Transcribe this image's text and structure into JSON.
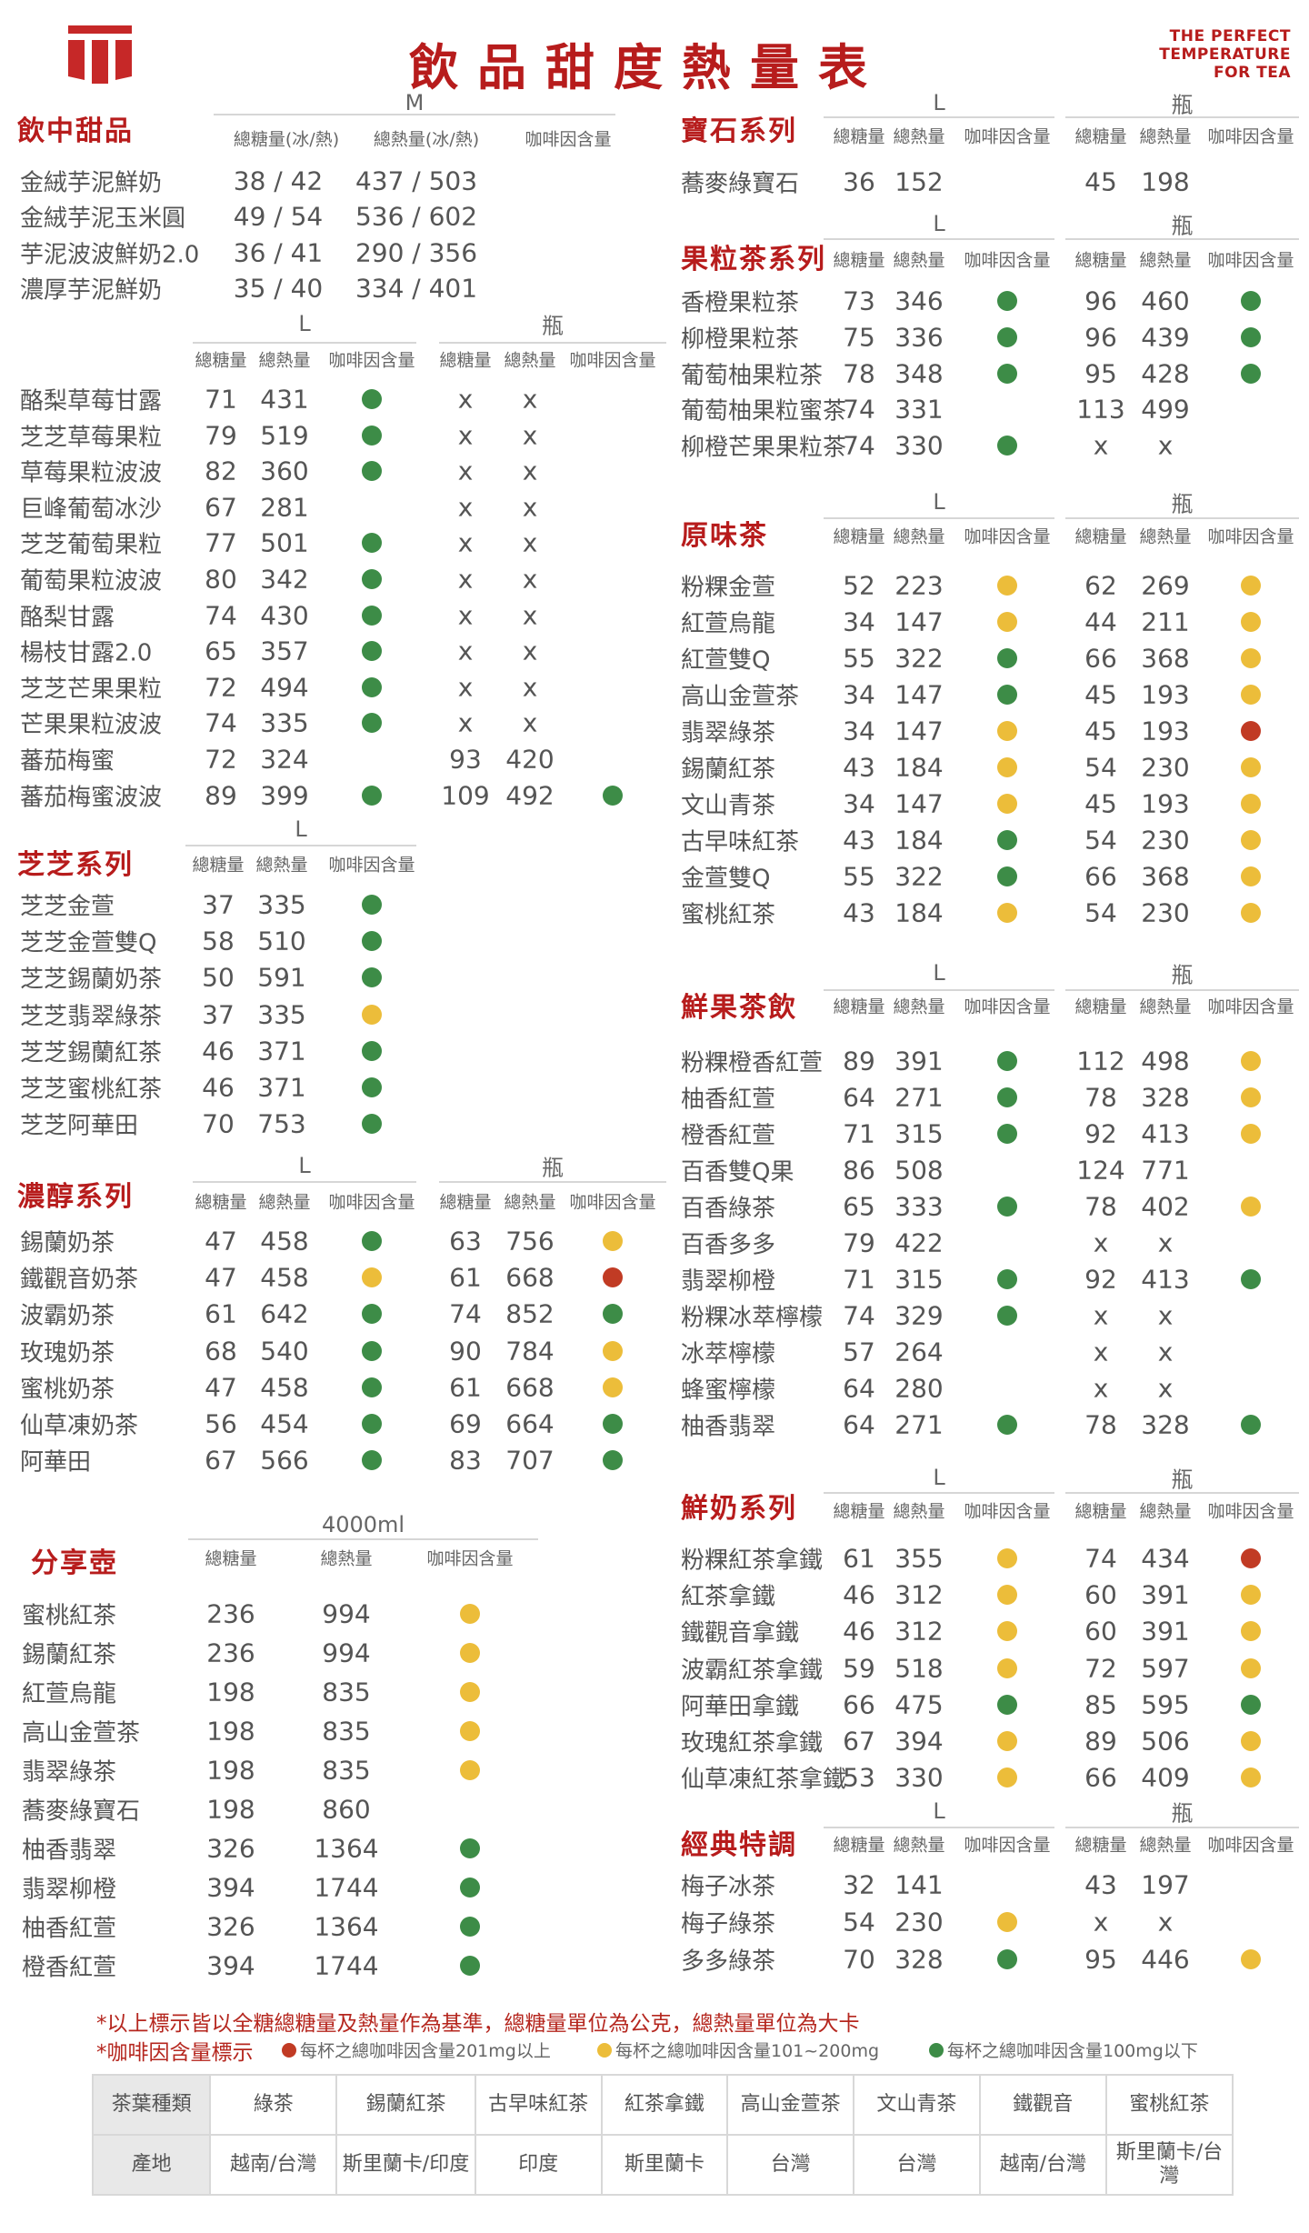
{
  "header": {
    "title": "飲品甜度熱量表",
    "brand_lines": [
      "THE PERFECT",
      "TEMPERATURE",
      "FOR TEA"
    ],
    "logo": "red-gate-logo"
  },
  "colors": {
    "brand": "#b71c1c",
    "green": "#3d8c47",
    "yellow": "#ecbd3a",
    "red": "#c13b24",
    "text": "#555555"
  },
  "sections": [
    {
      "title": "飲中甜品",
      "size_l": "M",
      "headers": [
        "總糖量(冰/熱)",
        "總熱量(冰/熱)",
        "咖啡因含量"
      ],
      "rows": [
        {
          "name": "金絨芋泥鮮奶",
          "l": [
            "38 / 42",
            "437 / 503",
            ""
          ]
        },
        {
          "name": "金絨芋泥玉米圓",
          "l": [
            "49 / 54",
            "536 / 602",
            ""
          ]
        },
        {
          "name": "芋泥波波鮮奶2.0",
          "l": [
            "36 / 41",
            "290 / 356",
            ""
          ]
        },
        {
          "name": "濃厚芋泥鮮奶",
          "l": [
            "35 / 40",
            "334 / 401",
            ""
          ]
        }
      ]
    },
    {
      "title": "",
      "size_l": "L",
      "size_b": "瓶",
      "headers": [
        "總糖量",
        "總熱量",
        "咖啡因含量"
      ],
      "rows": [
        {
          "name": "酪梨草莓甘露",
          "l": [
            "71",
            "431",
            "green"
          ],
          "b": [
            "x",
            "x",
            ""
          ]
        },
        {
          "name": "芝芝草莓果粒",
          "l": [
            "79",
            "519",
            "green"
          ],
          "b": [
            "x",
            "x",
            ""
          ]
        },
        {
          "name": "草莓果粒波波",
          "l": [
            "82",
            "360",
            "green"
          ],
          "b": [
            "x",
            "x",
            ""
          ]
        },
        {
          "name": "巨峰葡萄冰沙",
          "l": [
            "67",
            "281",
            ""
          ],
          "b": [
            "x",
            "x",
            ""
          ]
        },
        {
          "name": "芝芝葡萄果粒",
          "l": [
            "77",
            "501",
            "green"
          ],
          "b": [
            "x",
            "x",
            ""
          ]
        },
        {
          "name": "葡萄果粒波波",
          "l": [
            "80",
            "342",
            "green"
          ],
          "b": [
            "x",
            "x",
            ""
          ]
        },
        {
          "name": "酪梨甘露",
          "l": [
            "74",
            "430",
            "green"
          ],
          "b": [
            "x",
            "x",
            ""
          ]
        },
        {
          "name": "楊枝甘露2.0",
          "l": [
            "65",
            "357",
            "green"
          ],
          "b": [
            "x",
            "x",
            ""
          ]
        },
        {
          "name": "芝芝芒果果粒",
          "l": [
            "72",
            "494",
            "green"
          ],
          "b": [
            "x",
            "x",
            ""
          ]
        },
        {
          "name": "芒果果粒波波",
          "l": [
            "74",
            "335",
            "green"
          ],
          "b": [
            "x",
            "x",
            ""
          ]
        },
        {
          "name": "蕃茄梅蜜",
          "l": [
            "72",
            "324",
            ""
          ],
          "b": [
            "93",
            "420",
            ""
          ]
        },
        {
          "name": "蕃茄梅蜜波波",
          "l": [
            "89",
            "399",
            "green"
          ],
          "b": [
            "109",
            "492",
            "green"
          ]
        }
      ]
    },
    {
      "title": "芝芝系列",
      "size_l": "L",
      "headers": [
        "總糖量",
        "總熱量",
        "咖啡因含量"
      ],
      "rows": [
        {
          "name": "芝芝金萱",
          "l": [
            "37",
            "335",
            "green"
          ]
        },
        {
          "name": "芝芝金萱雙Q",
          "l": [
            "58",
            "510",
            "green"
          ]
        },
        {
          "name": "芝芝錫蘭奶茶",
          "l": [
            "50",
            "591",
            "green"
          ]
        },
        {
          "name": "芝芝翡翠綠茶",
          "l": [
            "37",
            "335",
            "yellow"
          ]
        },
        {
          "name": "芝芝錫蘭紅茶",
          "l": [
            "46",
            "371",
            "green"
          ]
        },
        {
          "name": "芝芝蜜桃紅茶",
          "l": [
            "46",
            "371",
            "green"
          ]
        },
        {
          "name": "芝芝阿華田",
          "l": [
            "70",
            "753",
            "green"
          ]
        }
      ]
    },
    {
      "title": "濃醇系列",
      "size_l": "L",
      "size_b": "瓶",
      "headers": [
        "總糖量",
        "總熱量",
        "咖啡因含量"
      ],
      "rows": [
        {
          "name": "錫蘭奶茶",
          "l": [
            "47",
            "458",
            "green"
          ],
          "b": [
            "63",
            "756",
            "yellow"
          ]
        },
        {
          "name": "鐵觀音奶茶",
          "l": [
            "47",
            "458",
            "yellow"
          ],
          "b": [
            "61",
            "668",
            "red"
          ]
        },
        {
          "name": "波霸奶茶",
          "l": [
            "61",
            "642",
            "green"
          ],
          "b": [
            "74",
            "852",
            "green"
          ]
        },
        {
          "name": "玫瑰奶茶",
          "l": [
            "68",
            "540",
            "green"
          ],
          "b": [
            "90",
            "784",
            "yellow"
          ]
        },
        {
          "name": "蜜桃奶茶",
          "l": [
            "47",
            "458",
            "green"
          ],
          "b": [
            "61",
            "668",
            "yellow"
          ]
        },
        {
          "name": "仙草凍奶茶",
          "l": [
            "56",
            "454",
            "green"
          ],
          "b": [
            "69",
            "664",
            "green"
          ]
        },
        {
          "name": "阿華田",
          "l": [
            "67",
            "566",
            "green"
          ],
          "b": [
            "83",
            "707",
            "green"
          ]
        }
      ]
    },
    {
      "title": "分享壺",
      "size_l": "4000ml",
      "headers": [
        "總糖量",
        "總熱量",
        "咖啡因含量"
      ],
      "rows": [
        {
          "name": "蜜桃紅茶",
          "l": [
            "236",
            "994",
            "yellow"
          ]
        },
        {
          "name": "錫蘭紅茶",
          "l": [
            "236",
            "994",
            "yellow"
          ]
        },
        {
          "name": "紅萱烏龍",
          "l": [
            "198",
            "835",
            "yellow"
          ]
        },
        {
          "name": "高山金萱茶",
          "l": [
            "198",
            "835",
            "yellow"
          ]
        },
        {
          "name": "翡翠綠茶",
          "l": [
            "198",
            "835",
            "yellow"
          ]
        },
        {
          "name": "蕎麥綠寶石",
          "l": [
            "198",
            "860",
            ""
          ]
        },
        {
          "name": "柚香翡翠",
          "l": [
            "326",
            "1364",
            "green"
          ]
        },
        {
          "name": "翡翠柳橙",
          "l": [
            "394",
            "1744",
            "green"
          ]
        },
        {
          "name": "柚香紅萱",
          "l": [
            "326",
            "1364",
            "green"
          ]
        },
        {
          "name": "橙香紅萱",
          "l": [
            "394",
            "1744",
            "green"
          ]
        }
      ]
    },
    {
      "title": "寶石系列",
      "size_l": "L",
      "size_b": "瓶",
      "headers": [
        "總糖量",
        "總熱量",
        "咖啡因含量"
      ],
      "rows": [
        {
          "name": "蕎麥綠寶石",
          "l": [
            "36",
            "152",
            ""
          ],
          "b": [
            "45",
            "198",
            ""
          ]
        }
      ]
    },
    {
      "title": "果粒茶系列",
      "size_l": "L",
      "size_b": "瓶",
      "headers": [
        "總糖量",
        "總熱量",
        "咖啡因含量"
      ],
      "rows": [
        {
          "name": "香橙果粒茶",
          "l": [
            "73",
            "346",
            "green"
          ],
          "b": [
            "96",
            "460",
            "green"
          ]
        },
        {
          "name": "柳橙果粒茶",
          "l": [
            "75",
            "336",
            "green"
          ],
          "b": [
            "96",
            "439",
            "green"
          ]
        },
        {
          "name": "葡萄柚果粒茶",
          "l": [
            "78",
            "348",
            "green"
          ],
          "b": [
            "95",
            "428",
            "green"
          ]
        },
        {
          "name": "葡萄柚果粒蜜茶",
          "l": [
            "74",
            "331",
            ""
          ],
          "b": [
            "113",
            "499",
            ""
          ]
        },
        {
          "name": "柳橙芒果果粒茶",
          "l": [
            "74",
            "330",
            "green"
          ],
          "b": [
            "x",
            "x",
            ""
          ]
        }
      ]
    },
    {
      "title": "原味茶",
      "size_l": "L",
      "size_b": "瓶",
      "headers": [
        "總糖量",
        "總熱量",
        "咖啡因含量"
      ],
      "rows": [
        {
          "name": "粉粿金萱",
          "l": [
            "52",
            "223",
            "yellow"
          ],
          "b": [
            "62",
            "269",
            "yellow"
          ]
        },
        {
          "name": "紅萱烏龍",
          "l": [
            "34",
            "147",
            "yellow"
          ],
          "b": [
            "44",
            "211",
            "yellow"
          ]
        },
        {
          "name": "紅萱雙Q",
          "l": [
            "55",
            "322",
            "green"
          ],
          "b": [
            "66",
            "368",
            "yellow"
          ]
        },
        {
          "name": "高山金萱茶",
          "l": [
            "34",
            "147",
            "green"
          ],
          "b": [
            "45",
            "193",
            "yellow"
          ]
        },
        {
          "name": "翡翠綠茶",
          "l": [
            "34",
            "147",
            "yellow"
          ],
          "b": [
            "45",
            "193",
            "red"
          ]
        },
        {
          "name": "錫蘭紅茶",
          "l": [
            "43",
            "184",
            "yellow"
          ],
          "b": [
            "54",
            "230",
            "yellow"
          ]
        },
        {
          "name": "文山青茶",
          "l": [
            "34",
            "147",
            "yellow"
          ],
          "b": [
            "45",
            "193",
            "yellow"
          ]
        },
        {
          "name": "古早味紅茶",
          "l": [
            "43",
            "184",
            "green"
          ],
          "b": [
            "54",
            "230",
            "yellow"
          ]
        },
        {
          "name": "金萱雙Q",
          "l": [
            "55",
            "322",
            "green"
          ],
          "b": [
            "66",
            "368",
            "yellow"
          ]
        },
        {
          "name": "蜜桃紅茶",
          "l": [
            "43",
            "184",
            "yellow"
          ],
          "b": [
            "54",
            "230",
            "yellow"
          ]
        }
      ]
    },
    {
      "title": "鮮果茶飲",
      "size_l": "L",
      "size_b": "瓶",
      "headers": [
        "總糖量",
        "總熱量",
        "咖啡因含量"
      ],
      "rows": [
        {
          "name": "粉粿橙香紅萱",
          "l": [
            "89",
            "391",
            "green"
          ],
          "b": [
            "112",
            "498",
            "yellow"
          ]
        },
        {
          "name": "柚香紅萱",
          "l": [
            "64",
            "271",
            "green"
          ],
          "b": [
            "78",
            "328",
            "yellow"
          ]
        },
        {
          "name": "橙香紅萱",
          "l": [
            "71",
            "315",
            "green"
          ],
          "b": [
            "92",
            "413",
            "yellow"
          ]
        },
        {
          "name": "百香雙Q果",
          "l": [
            "86",
            "508",
            ""
          ],
          "b": [
            "124",
            "771",
            ""
          ]
        },
        {
          "name": "百香綠茶",
          "l": [
            "65",
            "333",
            "green"
          ],
          "b": [
            "78",
            "402",
            "yellow"
          ]
        },
        {
          "name": "百香多多",
          "l": [
            "79",
            "422",
            ""
          ],
          "b": [
            "x",
            "x",
            ""
          ]
        },
        {
          "name": "翡翠柳橙",
          "l": [
            "71",
            "315",
            "green"
          ],
          "b": [
            "92",
            "413",
            "green"
          ]
        },
        {
          "name": "粉粿冰萃檸檬",
          "l": [
            "74",
            "329",
            "green"
          ],
          "b": [
            "x",
            "x",
            ""
          ]
        },
        {
          "name": "冰萃檸檬",
          "l": [
            "57",
            "264",
            ""
          ],
          "b": [
            "x",
            "x",
            ""
          ]
        },
        {
          "name": "蜂蜜檸檬",
          "l": [
            "64",
            "280",
            ""
          ],
          "b": [
            "x",
            "x",
            ""
          ]
        },
        {
          "name": "柚香翡翠",
          "l": [
            "64",
            "271",
            "green"
          ],
          "b": [
            "78",
            "328",
            "green"
          ]
        }
      ]
    },
    {
      "title": "鮮奶系列",
      "size_l": "L",
      "size_b": "瓶",
      "headers": [
        "總糖量",
        "總熱量",
        "咖啡因含量"
      ],
      "rows": [
        {
          "name": "粉粿紅茶拿鐵",
          "l": [
            "61",
            "355",
            "yellow"
          ],
          "b": [
            "74",
            "434",
            "red"
          ]
        },
        {
          "name": "紅茶拿鐵",
          "l": [
            "46",
            "312",
            "yellow"
          ],
          "b": [
            "60",
            "391",
            "yellow"
          ]
        },
        {
          "name": "鐵觀音拿鐵",
          "l": [
            "46",
            "312",
            "yellow"
          ],
          "b": [
            "60",
            "391",
            "yellow"
          ]
        },
        {
          "name": "波霸紅茶拿鐵",
          "l": [
            "59",
            "518",
            "yellow"
          ],
          "b": [
            "72",
            "597",
            "yellow"
          ]
        },
        {
          "name": "阿華田拿鐵",
          "l": [
            "66",
            "475",
            "green"
          ],
          "b": [
            "85",
            "595",
            "green"
          ]
        },
        {
          "name": "玫瑰紅茶拿鐵",
          "l": [
            "67",
            "394",
            "yellow"
          ],
          "b": [
            "89",
            "506",
            "yellow"
          ]
        },
        {
          "name": "仙草凍紅茶拿鐵",
          "l": [
            "53",
            "330",
            "yellow"
          ],
          "b": [
            "66",
            "409",
            "yellow"
          ]
        }
      ]
    },
    {
      "title": "經典特調",
      "size_l": "L",
      "size_b": "瓶",
      "headers": [
        "總糖量",
        "總熱量",
        "咖啡因含量"
      ],
      "rows": [
        {
          "name": "梅子冰茶",
          "l": [
            "32",
            "141",
            ""
          ],
          "b": [
            "43",
            "197",
            ""
          ]
        },
        {
          "name": "梅子綠茶",
          "l": [
            "54",
            "230",
            "yellow"
          ],
          "b": [
            "x",
            "x",
            ""
          ]
        },
        {
          "name": "多多綠茶",
          "l": [
            "70",
            "328",
            "green"
          ],
          "b": [
            "95",
            "446",
            "yellow"
          ]
        }
      ]
    }
  ],
  "notes": {
    "line1": "*以上標示皆以全糖總糖量及熱量作為基準，總糖量單位為公克，總熱量單位為大卡",
    "line2": "*咖啡因含量標示",
    "legend": [
      {
        "color": "red",
        "text": "每杯之總咖啡因含量201mg以上"
      },
      {
        "color": "yellow",
        "text": "每杯之總咖啡因含量101~200mg"
      },
      {
        "color": "green",
        "text": "每杯之總咖啡因含量100mg以下"
      }
    ]
  },
  "origin_table": {
    "row_labels": [
      "茶葉種類",
      "產地"
    ],
    "teas": [
      "綠茶",
      "錫蘭紅茶",
      "古早味紅茶",
      "紅茶拿鐵",
      "高山金萱茶",
      "文山青茶",
      "鐵觀音",
      "蜜桃紅茶"
    ],
    "origins": [
      "越南/台灣",
      "斯里蘭卡/印度",
      "印度",
      "斯里蘭卡",
      "台灣",
      "台灣",
      "越南/台灣",
      "斯里蘭卡/台灣"
    ]
  }
}
